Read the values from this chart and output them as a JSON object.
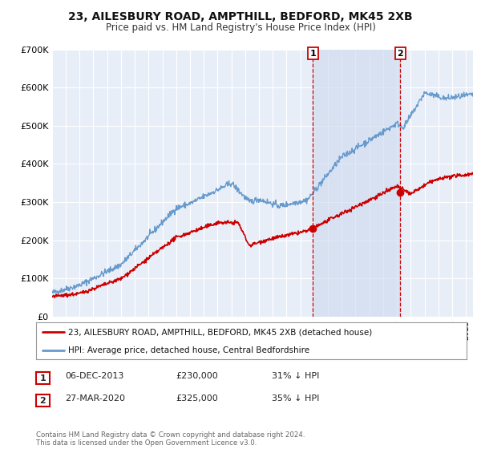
{
  "title": "23, AILESBURY ROAD, AMPTHILL, BEDFORD, MK45 2XB",
  "subtitle": "Price paid vs. HM Land Registry's House Price Index (HPI)",
  "background_color": "#ffffff",
  "plot_bg_color": "#e8eef8",
  "grid_color": "#ffffff",
  "ylim": [
    0,
    700000
  ],
  "xlim_start": 1995.0,
  "xlim_end": 2025.5,
  "ytick_labels": [
    "£0",
    "£100K",
    "£200K",
    "£300K",
    "£400K",
    "£500K",
    "£600K",
    "£700K"
  ],
  "ytick_values": [
    0,
    100000,
    200000,
    300000,
    400000,
    500000,
    600000,
    700000
  ],
  "red_line_label": "23, AILESBURY ROAD, AMPTHILL, BEDFORD, MK45 2XB (detached house)",
  "blue_line_label": "HPI: Average price, detached house, Central Bedfordshire",
  "marker1_date": 2013.92,
  "marker1_value": 230000,
  "marker2_date": 2020.24,
  "marker2_value": 325000,
  "footer": "Contains HM Land Registry data © Crown copyright and database right 2024.\nThis data is licensed under the Open Government Licence v3.0.",
  "red_color": "#cc0000",
  "blue_color": "#6699cc",
  "vline_color": "#cc0000",
  "shade_color": "#ccd9ee"
}
